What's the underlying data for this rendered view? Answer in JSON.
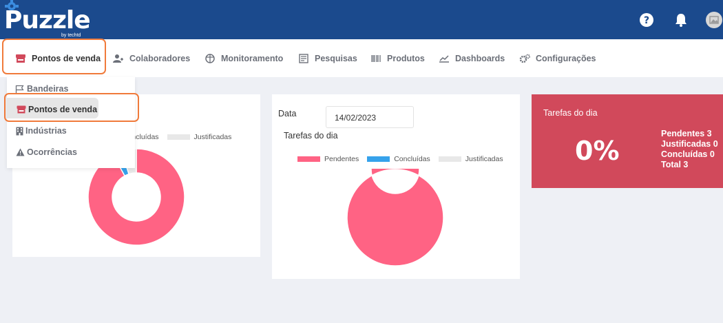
{
  "app": {
    "logo_text": "Puzzle",
    "logo_sub": "by techtd"
  },
  "nav": {
    "items": [
      {
        "label": "Pontos de venda",
        "icon": "store-icon"
      },
      {
        "label": "Colaboradores",
        "icon": "users-icon"
      },
      {
        "label": "Monitoramento",
        "icon": "globe-icon"
      },
      {
        "label": "Pesquisas",
        "icon": "survey-icon"
      },
      {
        "label": "Produtos",
        "icon": "barcode-icon"
      },
      {
        "label": "Dashboards",
        "icon": "chart-line-icon"
      },
      {
        "label": "Configurações",
        "icon": "gears-icon"
      }
    ]
  },
  "dropdown": {
    "items": [
      {
        "label": "Bandeiras",
        "icon": "flag-icon"
      },
      {
        "label": "Pontos de venda",
        "icon": "store-icon"
      },
      {
        "label": "Indústrias",
        "icon": "building-icon"
      },
      {
        "label": "Ocorrências",
        "icon": "warning-icon"
      }
    ]
  },
  "card1": {
    "legend": [
      "Concluídas",
      "Justificadas"
    ],
    "chart_data": {
      "type": "pie",
      "labels": [
        "Pendentes",
        "Concluídas",
        "Justificadas"
      ],
      "values": [
        92,
        3,
        5
      ],
      "colors": [
        "#ff6384",
        "#36a2eb",
        "#e8e8e8"
      ]
    }
  },
  "card2": {
    "date_label": "Data",
    "date_value": "14/02/2023",
    "title": "Tarefas do dia",
    "legend": [
      "Pendentes",
      "Concluídas",
      "Justificadas"
    ],
    "chart_data": {
      "type": "pie",
      "labels": [
        "Pendentes",
        "Concluídas",
        "Justificadas"
      ],
      "values": [
        3,
        0,
        0
      ],
      "colors": [
        "#ff6384",
        "#36a2eb",
        "#e8e8e8"
      ]
    }
  },
  "summary": {
    "title": "Tarefas do dia",
    "percent": "0%",
    "stats": [
      "Pendentes 3",
      "Justificadas 0",
      "Concluídas 0",
      "Total 3"
    ]
  },
  "colors": {
    "header": "#1b4a8d",
    "highlight": "#f07a3a",
    "pendentes": "#ff6384",
    "concluidas": "#36a2eb",
    "justificadas": "#e8e8e8",
    "summary_card": "#d1495b"
  }
}
